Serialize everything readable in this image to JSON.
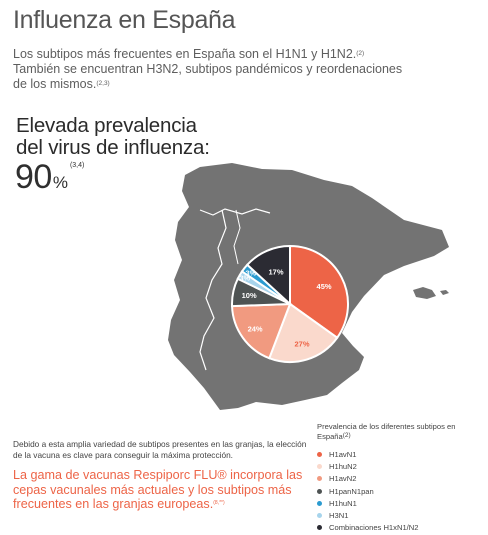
{
  "title": "Influenza en España",
  "intro": {
    "line1": "Los subtipos más frecuentes en España son el H1N1 y H1N2.",
    "line1_ref": "(2)",
    "line2": "También se encuentran H3N2, subtipos pandémicos y reordenaciones de los mismos.",
    "line2_ref": "(2,3)"
  },
  "headline": {
    "line1": "Elevada prevalencia",
    "line2": "del virus de influenza:",
    "value": "90",
    "unit": "%",
    "ref": "(3,4)"
  },
  "body_text": "Debido a esta amplia variedad de  subtipos presentes en las granjas, la elección de la vacuna es clave para conseguir la máxima protección.",
  "highlight": {
    "text": "La gama de vacunas Respiporc FLU® incorpora  las cepas vacunales más actuales y los subtipos más frecuentes en las granjas europeas.",
    "ref": "(8,**)"
  },
  "legend": {
    "title": "Prevalencia de los diferentes subtipos en España",
    "title_ref": "(2)"
  },
  "colors": {
    "map_fill": "#737373",
    "map_border": "#ffffff",
    "pie_stroke": "#ffffff",
    "accent": "#ed6447"
  },
  "chart_data": {
    "type": "pie",
    "unit": "%",
    "slices": [
      {
        "label": "H1avN1",
        "value": 45,
        "display": "45%",
        "color": "#ed6447",
        "text_color": "#ffffff"
      },
      {
        "label": "H1huN2",
        "value": 27,
        "display": "27%",
        "color": "#fad9cc",
        "text_color": "#ed6447"
      },
      {
        "label": "H1avN2",
        "value": 24,
        "display": "24%",
        "color": "#f19a80",
        "text_color": "#ffffff"
      },
      {
        "label": "H1panN1pan",
        "value": 10,
        "display": "10%",
        "color": "#4e5353",
        "text_color": "#ffffff"
      },
      {
        "label": "H1huN1",
        "value": 3,
        "display": "3%",
        "color": "#2b9bd0",
        "text_color": "#ffffff"
      },
      {
        "label": "H3N1",
        "value": 3,
        "display": "3%",
        "color": "#a7d4ec",
        "text_color": "#ffffff"
      },
      {
        "label": "Combinaciones H1xN1/N2",
        "value": 17,
        "display": "17%",
        "color": "#2b2b33",
        "text_color": "#ffffff"
      }
    ]
  }
}
